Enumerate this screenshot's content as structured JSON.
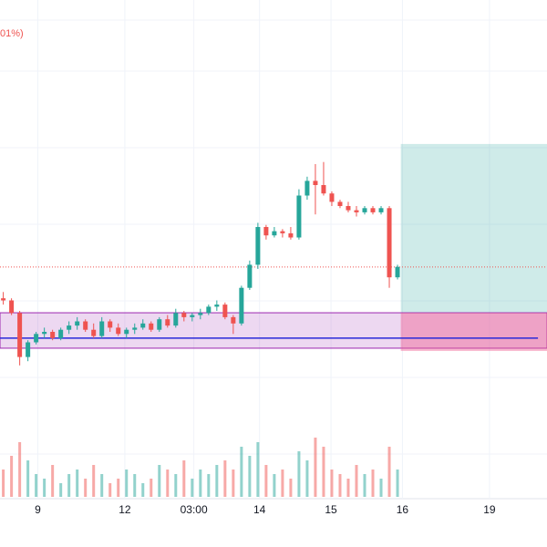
{
  "chart_data": {
    "type": "candlestick",
    "annotation": "01%)",
    "xlim": [
      -0.4,
      66.2
    ],
    "ylim": [
      0,
      110
    ],
    "volume_ylim": [
      0,
      100
    ],
    "xticks": [
      {
        "value": 4.2,
        "label": "9"
      },
      {
        "value": 14.8,
        "label": "12"
      },
      {
        "value": 23.2,
        "label": "03:00"
      },
      {
        "value": 31.2,
        "label": "14"
      },
      {
        "value": 39.9,
        "label": "15"
      },
      {
        "value": 48.6,
        "label": "16"
      },
      {
        "value": 59.2,
        "label": "19"
      }
    ],
    "open": [
      36,
      35,
      29,
      8,
      15,
      19,
      20,
      17,
      21,
      23,
      25,
      21,
      18,
      25,
      22,
      19,
      21,
      22,
      24,
      21,
      26,
      23,
      29,
      27,
      28,
      29,
      32,
      33,
      27,
      24,
      41,
      52,
      70,
      66,
      68,
      67,
      65,
      85,
      92,
      90,
      86,
      82,
      80,
      78,
      77,
      79,
      77,
      79,
      46
    ],
    "high": [
      39,
      36,
      30,
      16,
      20,
      22,
      21,
      22,
      25,
      27,
      26,
      24,
      27,
      26,
      24,
      22,
      24,
      26,
      25,
      27,
      28,
      31,
      30,
      29,
      31,
      33,
      35,
      34,
      28,
      42,
      54,
      72,
      71,
      70,
      69,
      70,
      88,
      94,
      100,
      101,
      87,
      83,
      82,
      80,
      80,
      80,
      80,
      80,
      52
    ],
    "low": [
      33,
      28,
      4,
      6,
      14,
      17,
      16,
      16,
      19,
      21,
      20,
      17,
      17,
      20,
      18,
      17,
      19,
      21,
      20,
      20,
      22,
      22,
      25,
      25,
      26,
      28,
      30,
      26,
      19,
      23,
      40,
      50,
      64,
      65,
      65,
      64,
      64,
      83,
      76,
      85,
      80,
      79,
      77,
      75,
      76,
      76,
      76,
      41,
      45
    ],
    "close": [
      35,
      29,
      8,
      15,
      19,
      20,
      17,
      21,
      23,
      25,
      21,
      18,
      25,
      22,
      19,
      21,
      22,
      24,
      21,
      26,
      23,
      29,
      27,
      28,
      29,
      32,
      33,
      27,
      24,
      41,
      52,
      70,
      66,
      68,
      67,
      65,
      85,
      92,
      90,
      86,
      82,
      80,
      78,
      77,
      79,
      77,
      79,
      46,
      51
    ],
    "volume": [
      30,
      45,
      60,
      40,
      25,
      20,
      35,
      15,
      25,
      30,
      20,
      35,
      25,
      15,
      20,
      30,
      25,
      15,
      20,
      35,
      30,
      25,
      40,
      20,
      30,
      25,
      35,
      40,
      30,
      55,
      45,
      60,
      35,
      25,
      30,
      20,
      50,
      40,
      65,
      55,
      30,
      25,
      20,
      35,
      25,
      30,
      20,
      55,
      30
    ],
    "up_color": "#26a69a",
    "down_color": "#ef5350",
    "price_line": {
      "value": 50.9,
      "color": "#ef5350"
    },
    "zone": {
      "top": 29.1,
      "bottom": 12.2,
      "color": "#9c27b0"
    },
    "level": {
      "value": 17,
      "end": 65.1,
      "color": "#2a2ad8"
    },
    "position": {
      "start": 48.4,
      "target": 109.6,
      "entry": 29.1,
      "stop": 10.9,
      "profit_color": "#26a69a",
      "loss_color": "#f06292"
    }
  }
}
